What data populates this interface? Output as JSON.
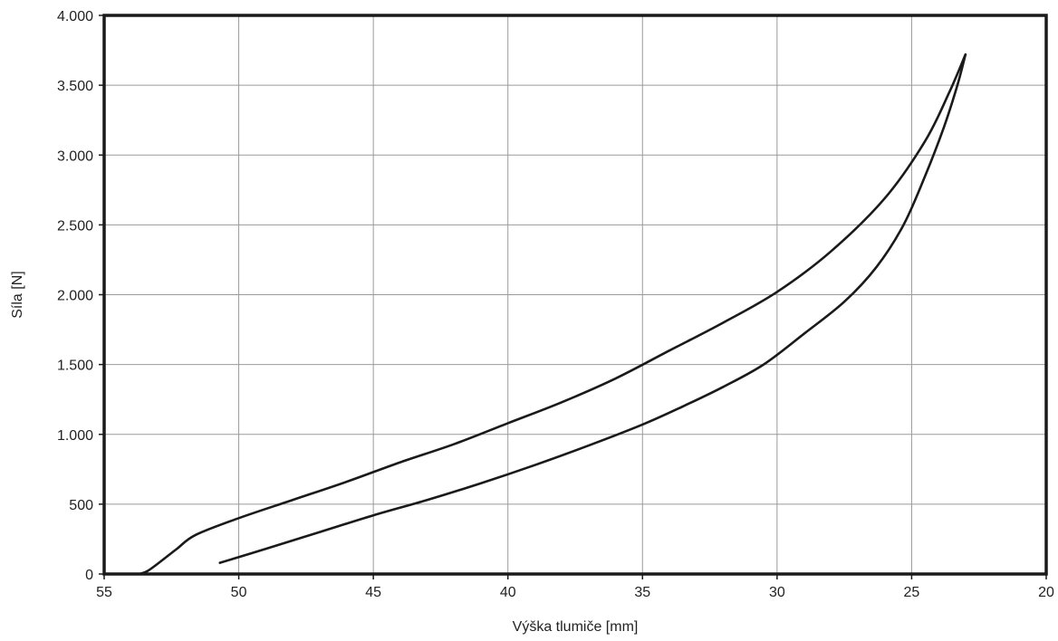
{
  "chart_data": {
    "type": "line",
    "title": "",
    "xlabel": "Výška tlumiče [mm]",
    "ylabel": "Síla [N]",
    "xlim": [
      55,
      20
    ],
    "ylim": [
      0,
      4000
    ],
    "x_reversed": true,
    "grid": true,
    "legend": "none",
    "x_ticks": [
      {
        "value": 55,
        "label": "55"
      },
      {
        "value": 50,
        "label": "50"
      },
      {
        "value": 45,
        "label": "45"
      },
      {
        "value": 40,
        "label": "40"
      },
      {
        "value": 35,
        "label": "35"
      },
      {
        "value": 30,
        "label": "30"
      },
      {
        "value": 25,
        "label": "25"
      },
      {
        "value": 20,
        "label": "20"
      }
    ],
    "y_ticks": [
      {
        "value": 0,
        "label": "0"
      },
      {
        "value": 500,
        "label": "500"
      },
      {
        "value": 1000,
        "label": "1.000"
      },
      {
        "value": 1500,
        "label": "1.500"
      },
      {
        "value": 2000,
        "label": "2.000"
      },
      {
        "value": 2500,
        "label": "2.500"
      },
      {
        "value": 3000,
        "label": "3.000"
      },
      {
        "value": 3500,
        "label": "3.500"
      },
      {
        "value": 4000,
        "label": "4.000"
      }
    ],
    "series": [
      {
        "color": "#1a1a1a",
        "points": [
          [
            53.7,
            0
          ],
          [
            53.4,
            20
          ],
          [
            52.9,
            90
          ],
          [
            52.3,
            180
          ],
          [
            51.6,
            280
          ],
          [
            50.0,
            400
          ],
          [
            48.0,
            530
          ],
          [
            46.0,
            660
          ],
          [
            44.0,
            800
          ],
          [
            42.0,
            930
          ],
          [
            40.0,
            1080
          ],
          [
            38.0,
            1230
          ],
          [
            36.0,
            1400
          ],
          [
            34.0,
            1600
          ],
          [
            32.0,
            1800
          ],
          [
            30.0,
            2020
          ],
          [
            28.0,
            2310
          ],
          [
            26.0,
            2690
          ],
          [
            24.5,
            3100
          ],
          [
            23.6,
            3450
          ],
          [
            23.0,
            3720
          ]
        ]
      },
      {
        "color": "#1a1a1a",
        "points": [
          [
            23.0,
            3720
          ],
          [
            23.3,
            3500
          ],
          [
            23.8,
            3200
          ],
          [
            24.5,
            2850
          ],
          [
            25.3,
            2500
          ],
          [
            26.3,
            2200
          ],
          [
            27.5,
            1950
          ],
          [
            29.0,
            1720
          ],
          [
            30.5,
            1500
          ],
          [
            32.0,
            1340
          ],
          [
            33.5,
            1200
          ],
          [
            35.0,
            1070
          ],
          [
            37.0,
            920
          ],
          [
            39.0,
            780
          ],
          [
            41.0,
            650
          ],
          [
            43.0,
            530
          ],
          [
            45.0,
            420
          ],
          [
            47.0,
            300
          ],
          [
            49.0,
            180
          ],
          [
            50.7,
            80
          ]
        ]
      }
    ]
  }
}
